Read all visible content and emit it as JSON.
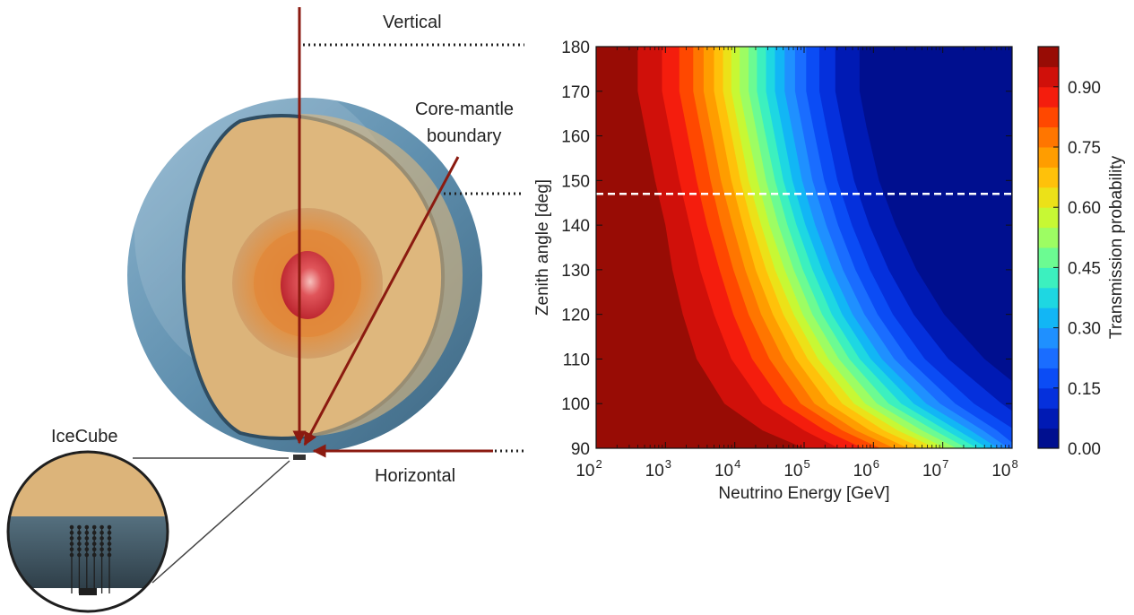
{
  "diagram": {
    "labels": {
      "vertical": "Vertical",
      "core_mantle_line1": "Core-mantle",
      "core_mantle_line2": "boundary",
      "horizontal": "Horizontal",
      "icecube": "IceCube"
    },
    "colors": {
      "arrow": "#8b1a10",
      "crust": "#5d8fb0",
      "mantle": "#dcb47a",
      "outer_core": "#d88a3c",
      "inner_core": "#d2403f",
      "ice_dark": "#3a4e5c"
    }
  },
  "chart_data": {
    "type": "heatmap",
    "title": "",
    "xlabel": "Neutrino Energy [GeV]",
    "ylabel": "Zenith angle [deg]",
    "x_scale": "log",
    "x_ticks": [
      {
        "value": 100,
        "base": "10",
        "exp": "2"
      },
      {
        "value": 1000,
        "base": "10",
        "exp": "3"
      },
      {
        "value": 10000,
        "base": "10",
        "exp": "4"
      },
      {
        "value": 100000,
        "base": "10",
        "exp": "5"
      },
      {
        "value": 1000000,
        "base": "10",
        "exp": "6"
      },
      {
        "value": 10000000,
        "base": "10",
        "exp": "7"
      },
      {
        "value": 100000000,
        "base": "10",
        "exp": "8"
      }
    ],
    "xlim": [
      100,
      100000000
    ],
    "ylim": [
      90,
      180
    ],
    "y_ticks": [
      90,
      100,
      110,
      120,
      130,
      140,
      150,
      160,
      170,
      180
    ],
    "reference_line": {
      "zenith_deg": 147,
      "style": "dashed",
      "color": "#ffffff"
    },
    "colorbar": {
      "label": "Transmission probability",
      "range": [
        0,
        1
      ],
      "tick_labels": [
        "0.00",
        "0.15",
        "0.30",
        "0.45",
        "0.60",
        "0.75",
        "0.90"
      ],
      "tick_values": [
        0.0,
        0.15,
        0.3,
        0.45,
        0.6,
        0.75,
        0.9
      ],
      "levels": [
        {
          "lo": 0.0,
          "hi": 0.05,
          "color": "#000f8f"
        },
        {
          "lo": 0.05,
          "hi": 0.1,
          "color": "#001ab4"
        },
        {
          "lo": 0.1,
          "hi": 0.15,
          "color": "#0530dc"
        },
        {
          "lo": 0.15,
          "hi": 0.2,
          "color": "#0b4cf5"
        },
        {
          "lo": 0.2,
          "hi": 0.25,
          "color": "#1a6dff"
        },
        {
          "lo": 0.25,
          "hi": 0.3,
          "color": "#1f90ff"
        },
        {
          "lo": 0.3,
          "hi": 0.35,
          "color": "#12b6f5"
        },
        {
          "lo": 0.35,
          "hi": 0.4,
          "color": "#1ed7e2"
        },
        {
          "lo": 0.4,
          "hi": 0.45,
          "color": "#3cf0bf"
        },
        {
          "lo": 0.45,
          "hi": 0.5,
          "color": "#6cfb92"
        },
        {
          "lo": 0.5,
          "hi": 0.55,
          "color": "#9dfd63"
        },
        {
          "lo": 0.55,
          "hi": 0.6,
          "color": "#c7f834"
        },
        {
          "lo": 0.6,
          "hi": 0.65,
          "color": "#ece118"
        },
        {
          "lo": 0.65,
          "hi": 0.7,
          "color": "#ffc10a"
        },
        {
          "lo": 0.7,
          "hi": 0.75,
          "color": "#ff9d00"
        },
        {
          "lo": 0.75,
          "hi": 0.8,
          "color": "#ff7600"
        },
        {
          "lo": 0.8,
          "hi": 0.85,
          "color": "#ff4800"
        },
        {
          "lo": 0.85,
          "hi": 0.9,
          "color": "#f41d0d"
        },
        {
          "lo": 0.9,
          "hi": 0.95,
          "color": "#d0100a"
        },
        {
          "lo": 0.95,
          "hi": 1.0,
          "color": "#980c05"
        }
      ]
    },
    "contours": [
      {
        "level": 0.95,
        "points": [
          [
            2.6,
            180
          ],
          [
            2.6,
            170
          ],
          [
            2.7,
            162
          ],
          [
            2.85,
            150
          ],
          [
            3.0,
            140
          ],
          [
            3.1,
            130
          ],
          [
            3.25,
            120
          ],
          [
            3.45,
            110
          ],
          [
            3.85,
            100
          ],
          [
            4.4,
            94
          ],
          [
            5.0,
            90
          ]
        ]
      },
      {
        "level": 0.9,
        "points": [
          [
            2.95,
            180
          ],
          [
            2.95,
            170
          ],
          [
            3.05,
            162
          ],
          [
            3.2,
            150
          ],
          [
            3.35,
            140
          ],
          [
            3.5,
            130
          ],
          [
            3.7,
            120
          ],
          [
            3.95,
            110
          ],
          [
            4.4,
            100
          ],
          [
            5.0,
            94
          ],
          [
            5.5,
            90
          ]
        ]
      },
      {
        "level": 0.85,
        "points": [
          [
            3.2,
            180
          ],
          [
            3.2,
            170
          ],
          [
            3.3,
            162
          ],
          [
            3.45,
            150
          ],
          [
            3.6,
            140
          ],
          [
            3.78,
            130
          ],
          [
            3.98,
            120
          ],
          [
            4.25,
            110
          ],
          [
            4.7,
            100
          ],
          [
            5.3,
            94
          ],
          [
            5.85,
            90
          ]
        ]
      },
      {
        "level": 0.8,
        "points": [
          [
            3.4,
            180
          ],
          [
            3.4,
            170
          ],
          [
            3.5,
            162
          ],
          [
            3.65,
            150
          ],
          [
            3.8,
            140
          ],
          [
            3.98,
            130
          ],
          [
            4.2,
            120
          ],
          [
            4.5,
            110
          ],
          [
            4.95,
            100
          ],
          [
            5.55,
            94
          ],
          [
            6.1,
            90
          ]
        ]
      },
      {
        "level": 0.75,
        "points": [
          [
            3.55,
            180
          ],
          [
            3.55,
            170
          ],
          [
            3.65,
            162
          ],
          [
            3.8,
            150
          ],
          [
            3.97,
            140
          ],
          [
            4.15,
            130
          ],
          [
            4.38,
            120
          ],
          [
            4.7,
            110
          ],
          [
            5.15,
            100
          ],
          [
            5.75,
            94
          ],
          [
            6.3,
            90
          ]
        ]
      },
      {
        "level": 0.7,
        "points": [
          [
            3.7,
            180
          ],
          [
            3.7,
            170
          ],
          [
            3.8,
            162
          ],
          [
            3.95,
            150
          ],
          [
            4.12,
            140
          ],
          [
            4.3,
            130
          ],
          [
            4.55,
            120
          ],
          [
            4.88,
            110
          ],
          [
            5.35,
            100
          ],
          [
            5.95,
            94
          ],
          [
            6.5,
            90
          ]
        ]
      },
      {
        "level": 0.65,
        "points": [
          [
            3.83,
            180
          ],
          [
            3.83,
            170
          ],
          [
            3.93,
            162
          ],
          [
            4.08,
            150
          ],
          [
            4.25,
            140
          ],
          [
            4.45,
            130
          ],
          [
            4.7,
            120
          ],
          [
            5.05,
            110
          ],
          [
            5.55,
            100
          ],
          [
            6.15,
            94
          ],
          [
            6.7,
            90
          ]
        ]
      },
      {
        "level": 0.6,
        "points": [
          [
            3.95,
            180
          ],
          [
            3.95,
            170
          ],
          [
            4.05,
            162
          ],
          [
            4.2,
            150
          ],
          [
            4.38,
            140
          ],
          [
            4.58,
            130
          ],
          [
            4.85,
            120
          ],
          [
            5.2,
            110
          ],
          [
            5.72,
            100
          ],
          [
            6.35,
            94
          ],
          [
            6.9,
            90
          ]
        ]
      },
      {
        "level": 0.55,
        "points": [
          [
            4.07,
            180
          ],
          [
            4.07,
            170
          ],
          [
            4.17,
            162
          ],
          [
            4.33,
            150
          ],
          [
            4.5,
            140
          ],
          [
            4.72,
            130
          ],
          [
            4.98,
            120
          ],
          [
            5.35,
            110
          ],
          [
            5.88,
            100
          ],
          [
            6.52,
            94
          ],
          [
            7.05,
            90
          ]
        ]
      },
      {
        "level": 0.5,
        "points": [
          [
            4.2,
            180
          ],
          [
            4.2,
            170
          ],
          [
            4.3,
            162
          ],
          [
            4.45,
            150
          ],
          [
            4.63,
            140
          ],
          [
            4.85,
            130
          ],
          [
            5.12,
            120
          ],
          [
            5.5,
            110
          ],
          [
            6.05,
            100
          ],
          [
            6.7,
            94
          ],
          [
            7.2,
            90
          ]
        ]
      },
      {
        "level": 0.45,
        "points": [
          [
            4.32,
            180
          ],
          [
            4.32,
            170
          ],
          [
            4.42,
            162
          ],
          [
            4.58,
            150
          ],
          [
            4.76,
            140
          ],
          [
            4.98,
            130
          ],
          [
            5.26,
            120
          ],
          [
            5.65,
            110
          ],
          [
            6.22,
            100
          ],
          [
            6.88,
            94
          ],
          [
            7.35,
            90
          ]
        ]
      },
      {
        "level": 0.4,
        "points": [
          [
            4.45,
            180
          ],
          [
            4.45,
            170
          ],
          [
            4.55,
            162
          ],
          [
            4.7,
            150
          ],
          [
            4.89,
            140
          ],
          [
            5.12,
            130
          ],
          [
            5.4,
            120
          ],
          [
            5.8,
            110
          ],
          [
            6.4,
            100
          ],
          [
            7.05,
            94
          ],
          [
            7.5,
            90
          ]
        ]
      },
      {
        "level": 0.35,
        "points": [
          [
            4.58,
            180
          ],
          [
            4.58,
            170
          ],
          [
            4.68,
            162
          ],
          [
            4.83,
            150
          ],
          [
            5.02,
            140
          ],
          [
            5.26,
            130
          ],
          [
            5.55,
            120
          ],
          [
            5.96,
            110
          ],
          [
            6.58,
            100
          ],
          [
            7.22,
            94
          ],
          [
            7.65,
            90
          ]
        ]
      },
      {
        "level": 0.3,
        "points": [
          [
            4.72,
            180
          ],
          [
            4.72,
            170
          ],
          [
            4.82,
            162
          ],
          [
            4.97,
            150
          ],
          [
            5.16,
            140
          ],
          [
            5.4,
            130
          ],
          [
            5.7,
            120
          ],
          [
            6.12,
            110
          ],
          [
            6.76,
            100
          ],
          [
            7.4,
            94
          ],
          [
            7.8,
            90
          ]
        ]
      },
      {
        "level": 0.25,
        "points": [
          [
            4.87,
            180
          ],
          [
            4.87,
            170
          ],
          [
            4.97,
            162
          ],
          [
            5.12,
            150
          ],
          [
            5.32,
            140
          ],
          [
            5.56,
            130
          ],
          [
            5.87,
            120
          ],
          [
            6.3,
            110
          ],
          [
            6.96,
            100
          ],
          [
            7.58,
            94
          ],
          [
            7.95,
            90
          ]
        ]
      },
      {
        "level": 0.2,
        "points": [
          [
            5.03,
            180
          ],
          [
            5.03,
            170
          ],
          [
            5.13,
            162
          ],
          [
            5.29,
            150
          ],
          [
            5.49,
            140
          ],
          [
            5.74,
            130
          ],
          [
            6.06,
            120
          ],
          [
            6.5,
            110
          ],
          [
            7.18,
            100
          ],
          [
            7.78,
            94
          ],
          [
            8.1,
            90
          ]
        ]
      },
      {
        "level": 0.15,
        "points": [
          [
            5.22,
            180
          ],
          [
            5.22,
            170
          ],
          [
            5.32,
            162
          ],
          [
            5.48,
            150
          ],
          [
            5.69,
            140
          ],
          [
            5.95,
            130
          ],
          [
            6.28,
            120
          ],
          [
            6.74,
            110
          ],
          [
            7.45,
            100
          ],
          [
            8.05,
            94
          ],
          [
            8.3,
            90
          ]
        ]
      },
      {
        "level": 0.1,
        "points": [
          [
            5.45,
            180
          ],
          [
            5.45,
            170
          ],
          [
            5.55,
            162
          ],
          [
            5.72,
            150
          ],
          [
            5.94,
            140
          ],
          [
            6.22,
            130
          ],
          [
            6.58,
            120
          ],
          [
            7.08,
            110
          ],
          [
            7.85,
            100
          ],
          [
            8.4,
            94
          ],
          [
            8.6,
            90
          ]
        ]
      },
      {
        "level": 0.05,
        "points": [
          [
            5.8,
            180
          ],
          [
            5.8,
            170
          ],
          [
            5.9,
            162
          ],
          [
            6.08,
            150
          ],
          [
            6.32,
            140
          ],
          [
            6.62,
            130
          ],
          [
            7.02,
            120
          ],
          [
            7.6,
            110
          ],
          [
            8.4,
            100
          ],
          [
            8.8,
            94
          ],
          [
            9.0,
            90
          ]
        ]
      }
    ]
  }
}
